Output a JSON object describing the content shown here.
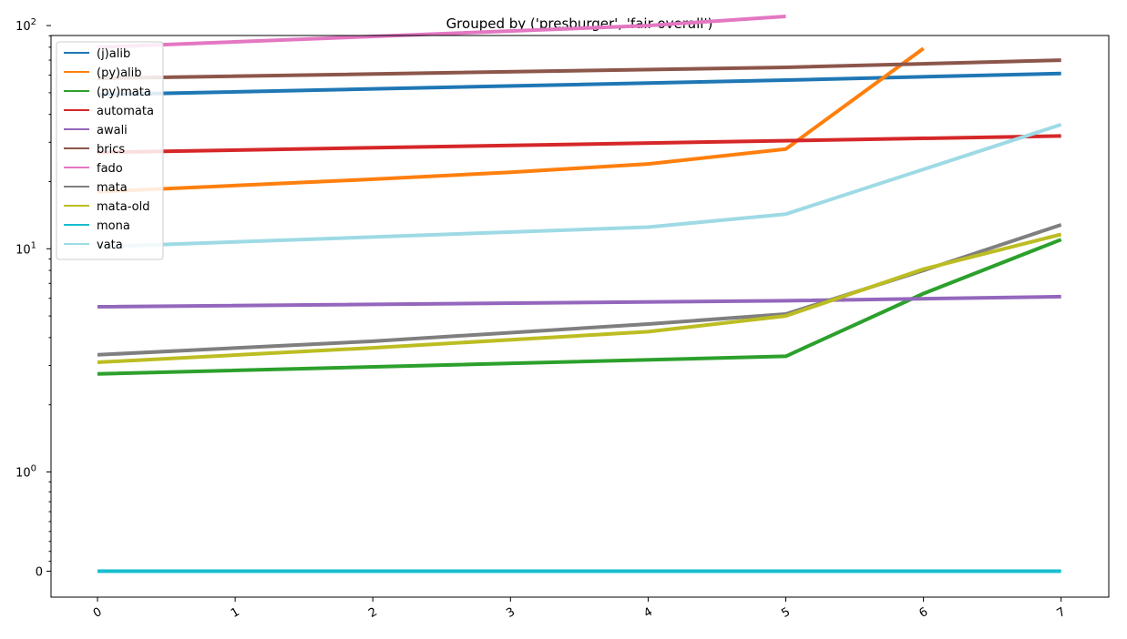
{
  "chart_data": {
    "type": "line",
    "title": "Grouped by ('presburger', 'fair-overall')",
    "xlabel": "",
    "ylabel": "",
    "yscale": "symlog",
    "grid": false,
    "legend_position": "top-left",
    "x_ticks": [
      "0",
      "1",
      "2",
      "3",
      "4",
      "5",
      "6",
      "7"
    ],
    "y_ticks": [
      {
        "value": 0,
        "base": "0",
        "exp": ""
      },
      {
        "value": 1,
        "base": "10",
        "exp": "0"
      },
      {
        "value": 10,
        "base": "10",
        "exp": "1"
      },
      {
        "value": 100,
        "base": "10",
        "exp": "2"
      }
    ],
    "series": [
      {
        "name": "(j)alib",
        "color": "#1f77b4",
        "x": [
          0,
          5,
          7
        ],
        "y": [
          49,
          57,
          61
        ]
      },
      {
        "name": "(py)alib",
        "color": "#ff7f0e",
        "x": [
          0,
          2,
          3,
          4,
          5,
          6
        ],
        "y": [
          18,
          20.5,
          22,
          24,
          28,
          79
        ]
      },
      {
        "name": "(py)mata",
        "color": "#2ca02c",
        "x": [
          0,
          5,
          6,
          7
        ],
        "y": [
          2.75,
          3.3,
          6.3,
          11
        ]
      },
      {
        "name": "automata",
        "color": "#d62728",
        "x": [
          0,
          7
        ],
        "y": [
          27,
          32
        ]
      },
      {
        "name": "awali",
        "color": "#9467bd",
        "x": [
          0,
          5,
          7
        ],
        "y": [
          5.5,
          5.85,
          6.1
        ]
      },
      {
        "name": "brics",
        "color": "#8c564b",
        "x": [
          0,
          5,
          7
        ],
        "y": [
          58,
          65,
          70
        ]
      },
      {
        "name": "fado",
        "color": "#e377c2",
        "x": [
          0,
          4,
          5
        ],
        "y": [
          80,
          100,
          110
        ]
      },
      {
        "name": "mata",
        "color": "#7f7f7f",
        "x": [
          0,
          2,
          4,
          5,
          6,
          7
        ],
        "y": [
          3.35,
          3.85,
          4.6,
          5.1,
          8,
          12.8
        ]
      },
      {
        "name": "mata-old",
        "color": "#bcbd22",
        "x": [
          0,
          2,
          4,
          5,
          6,
          7
        ],
        "y": [
          3.1,
          3.6,
          4.25,
          5,
          8.1,
          11.6
        ]
      },
      {
        "name": "mona",
        "color": "#17becf",
        "x": [
          0,
          7
        ],
        "y": [
          0,
          0
        ]
      },
      {
        "name": "vata",
        "color": "#9edae5",
        "x": [
          0,
          4,
          5,
          7
        ],
        "y": [
          10.2,
          12.5,
          14.3,
          36
        ]
      }
    ]
  }
}
